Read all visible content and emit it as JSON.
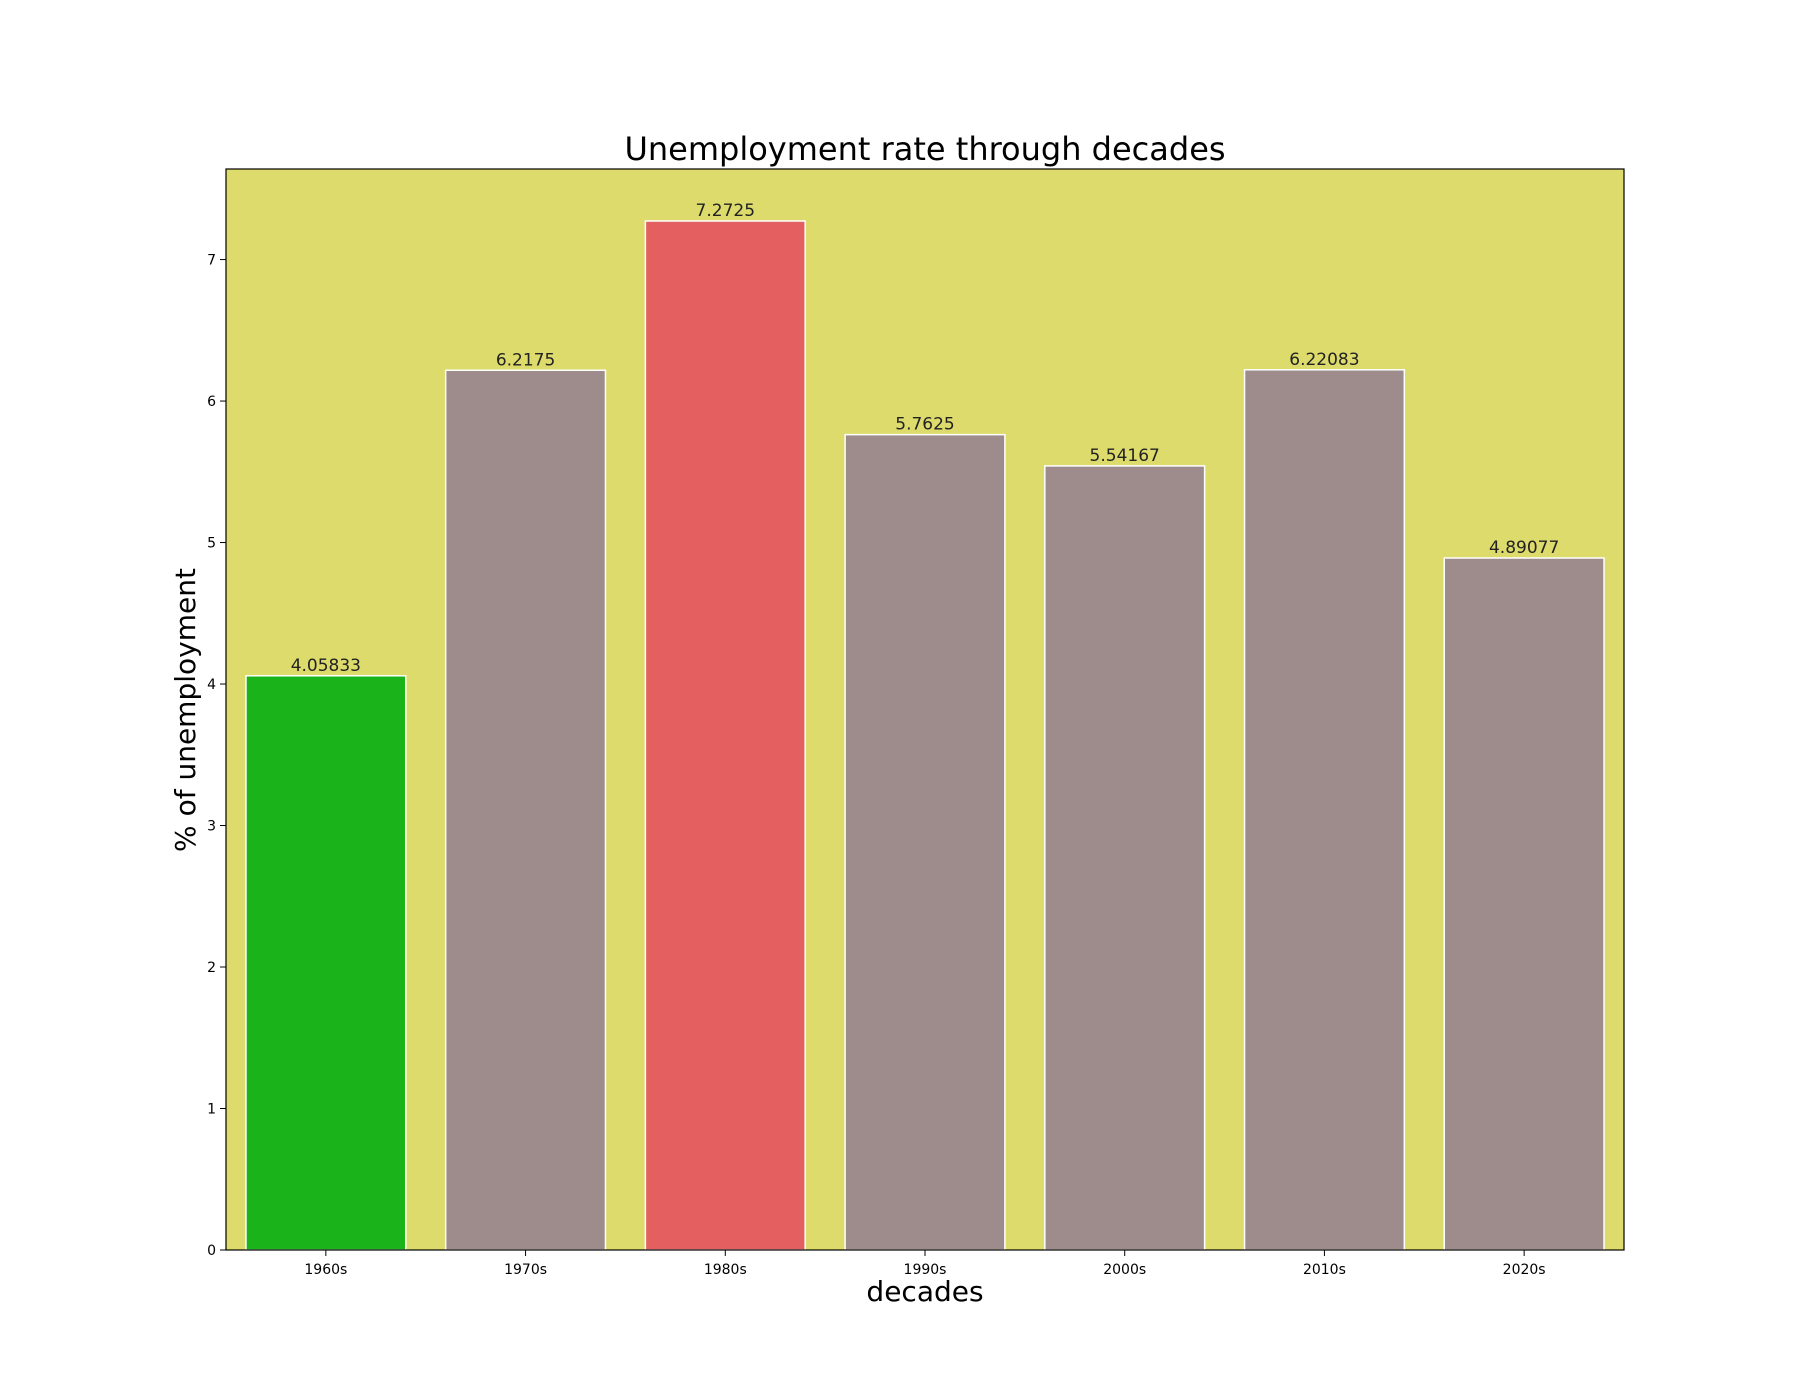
{
  "chart_data": {
    "type": "bar",
    "title": "Unemployment rate through decades",
    "xlabel": "decades",
    "ylabel": "% of unemployment",
    "categories": [
      "1960s",
      "1970s",
      "1980s",
      "1990s",
      "2000s",
      "2010s",
      "2020s"
    ],
    "values": [
      4.05833,
      6.2175,
      7.2725,
      5.7625,
      5.54167,
      6.22083,
      4.89077
    ],
    "data_labels": [
      "4.05833",
      "6.2175",
      "7.2725",
      "5.7625",
      "5.54167",
      "6.22083",
      "4.89077"
    ],
    "bar_colors": [
      "#1ab31a",
      "#9e8c8c",
      "#e46060",
      "#9e8c8c",
      "#9e8c8c",
      "#9e8c8c",
      "#9e8c8c"
    ],
    "ylim": [
      0,
      7.64
    ],
    "yticks": [
      0,
      1,
      2,
      3,
      4,
      5,
      6,
      7
    ],
    "ytick_labels": [
      "0",
      "1",
      "2",
      "3",
      "4",
      "5",
      "6",
      "7"
    ],
    "grid": false,
    "legend": "none",
    "colors": {
      "plot_background": "#dcdb6c",
      "bar_edge": "#ffffff",
      "axes_edge": "#000000"
    }
  }
}
